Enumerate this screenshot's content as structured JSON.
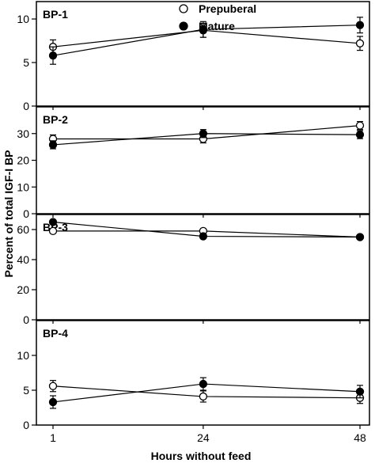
{
  "figure": {
    "ylabel": "Percent of total IGF-I BP",
    "xlabel": "Hours without feed"
  },
  "legend": {
    "placement": "top-center (first panel)",
    "items": [
      {
        "label": "Prepuberal",
        "marker": "open-circle"
      },
      {
        "label": "Mature",
        "marker": "filled-circle"
      }
    ]
  },
  "chart_data": [
    {
      "type": "line",
      "title": "BP-1",
      "x": [
        1,
        24,
        48
      ],
      "x_ticks": [
        "1",
        "24",
        "48"
      ],
      "ylim": [
        0,
        12
      ],
      "y_ticks": [
        "0",
        "5",
        "10"
      ],
      "series": [
        {
          "name": "Prepuberal",
          "marker": "open-circle",
          "values": [
            6.8,
            8.7,
            7.2
          ],
          "errors": [
            0.8,
            0.8,
            0.8
          ]
        },
        {
          "name": "Mature",
          "marker": "filled-circle",
          "values": [
            5.8,
            8.8,
            9.3
          ],
          "errors": [
            1.0,
            0.9,
            0.9
          ]
        }
      ]
    },
    {
      "type": "line",
      "title": "BP-2",
      "x": [
        1,
        24,
        48
      ],
      "x_ticks": [
        "1",
        "24",
        "48"
      ],
      "ylim": [
        0,
        40
      ],
      "y_ticks": [
        "0",
        "10",
        "20",
        "30"
      ],
      "series": [
        {
          "name": "Prepuberal",
          "marker": "open-circle",
          "values": [
            28.0,
            28.0,
            33.0
          ],
          "errors": [
            1.5,
            1.5,
            1.5
          ]
        },
        {
          "name": "Mature",
          "marker": "filled-circle",
          "values": [
            25.8,
            30.0,
            29.6
          ],
          "errors": [
            1.5,
            1.5,
            1.5
          ]
        }
      ]
    },
    {
      "type": "line",
      "title": "BP-3",
      "x": [
        1,
        24,
        48
      ],
      "x_ticks": [
        "1",
        "24",
        "48"
      ],
      "ylim": [
        0,
        70
      ],
      "y_ticks": [
        "0",
        "20",
        "40",
        "60"
      ],
      "series": [
        {
          "name": "Prepuberal",
          "marker": "open-circle",
          "values": [
            59.0,
            59.0,
            55.0
          ],
          "errors": [
            1.0,
            1.0,
            1.0
          ]
        },
        {
          "name": "Mature",
          "marker": "filled-circle",
          "values": [
            65.0,
            55.5,
            55.0
          ],
          "errors": [
            1.0,
            1.0,
            1.0
          ]
        }
      ]
    },
    {
      "type": "line",
      "title": "BP-4",
      "x": [
        1,
        24,
        48
      ],
      "x_ticks": [
        "1",
        "24",
        "48"
      ],
      "ylim": [
        0,
        15
      ],
      "y_ticks": [
        "0",
        "5",
        "10"
      ],
      "series": [
        {
          "name": "Prepuberal",
          "marker": "open-circle",
          "values": [
            5.6,
            4.1,
            3.9
          ],
          "errors": [
            0.8,
            0.8,
            0.8
          ]
        },
        {
          "name": "Mature",
          "marker": "filled-circle",
          "values": [
            3.3,
            5.9,
            4.8
          ],
          "errors": [
            0.9,
            0.9,
            0.9
          ]
        }
      ]
    }
  ]
}
